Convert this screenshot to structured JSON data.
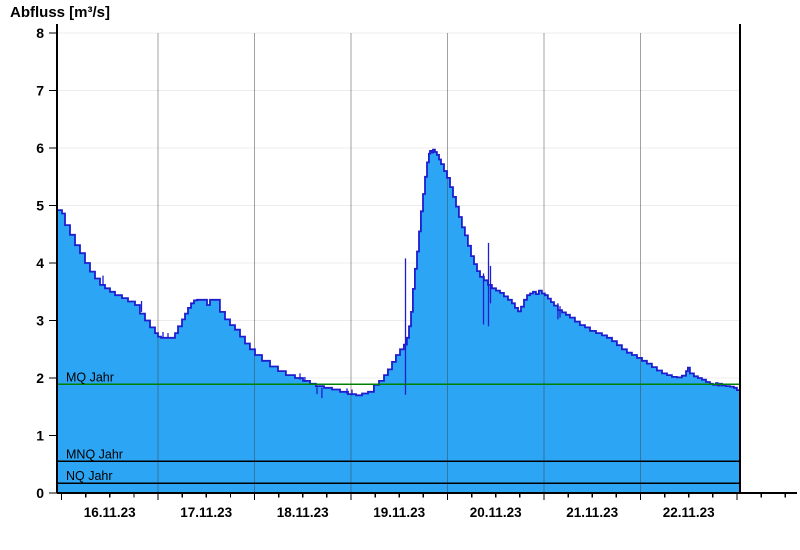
{
  "title": "Abfluss [m³/s]",
  "colors": {
    "area_fill": "#2ca5f4",
    "curve_line": "#1e1ecf",
    "mq_line": "#008000",
    "mnq_line": "#000000",
    "nq_line": "#000000",
    "h_grid": "#ececec",
    "v_grid_rgba": "rgba(68,68,68,0.5)",
    "axis": "#000000"
  },
  "chart_data": {
    "type": "area",
    "title": "Abfluss [m³/s]",
    "ylabel": "Abfluss [m³/s]",
    "xlabel": "",
    "ylim": [
      0,
      8
    ],
    "y_ticks": [
      0,
      1,
      2,
      3,
      4,
      5,
      6,
      7,
      8
    ],
    "x_day_labels": [
      "16.11.23",
      "17.11.23",
      "18.11.23",
      "19.11.23",
      "20.11.23",
      "21.11.23",
      "22.11.23"
    ],
    "x_range_days": [
      -0.047,
      7.031
    ],
    "minor_tick_hours": 6,
    "grid": {
      "horizontal_on_integer": true,
      "vertical_on_day_boundary": true
    },
    "legend": "none",
    "reference_lines": [
      {
        "id": "mq",
        "label": "MQ Jahr",
        "value": 1.89,
        "color": "#008000"
      },
      {
        "id": "mnq",
        "label": "MNQ Jahr",
        "value": 0.55,
        "color": "#000000"
      },
      {
        "id": "nq",
        "label": "NQ Jahr",
        "value": 0.17,
        "color": "#000000"
      }
    ],
    "series": [
      {
        "name": "Abfluss",
        "render": "step-area",
        "unit": "m³/s",
        "points": [
          [
            -0.047,
            4.92
          ],
          [
            0.005,
            4.86
          ],
          [
            0.036,
            4.66
          ],
          [
            0.088,
            4.49
          ],
          [
            0.14,
            4.31
          ],
          [
            0.192,
            4.17
          ],
          [
            0.244,
            4.0
          ],
          [
            0.295,
            3.85
          ],
          [
            0.347,
            3.73
          ],
          [
            0.399,
            3.62
          ],
          [
            0.451,
            3.56
          ],
          [
            0.503,
            3.5
          ],
          [
            0.554,
            3.44
          ],
          [
            0.627,
            3.39
          ],
          [
            0.689,
            3.33
          ],
          [
            0.762,
            3.27
          ],
          [
            0.813,
            3.12
          ],
          [
            0.865,
            3.0
          ],
          [
            0.917,
            2.88
          ],
          [
            0.969,
            2.78
          ],
          [
            1.0,
            2.72
          ],
          [
            1.031,
            2.7
          ],
          [
            1.145,
            2.7
          ],
          [
            1.176,
            2.78
          ],
          [
            1.207,
            2.9
          ],
          [
            1.249,
            3.02
          ],
          [
            1.28,
            3.12
          ],
          [
            1.311,
            3.22
          ],
          [
            1.342,
            3.3
          ],
          [
            1.373,
            3.35
          ],
          [
            1.404,
            3.36
          ],
          [
            1.497,
            3.36
          ],
          [
            1.508,
            3.27
          ],
          [
            1.539,
            3.36
          ],
          [
            1.601,
            3.36
          ],
          [
            1.642,
            3.15
          ],
          [
            1.694,
            3.02
          ],
          [
            1.746,
            2.92
          ],
          [
            1.798,
            2.84
          ],
          [
            1.85,
            2.72
          ],
          [
            1.902,
            2.6
          ],
          [
            1.953,
            2.5
          ],
          [
            2.005,
            2.4
          ],
          [
            2.078,
            2.3
          ],
          [
            2.161,
            2.2
          ],
          [
            2.244,
            2.12
          ],
          [
            2.326,
            2.05
          ],
          [
            2.42,
            2.0
          ],
          [
            2.503,
            1.95
          ],
          [
            2.575,
            1.9
          ],
          [
            2.637,
            1.86
          ],
          [
            2.72,
            1.83
          ],
          [
            2.803,
            1.8
          ],
          [
            2.886,
            1.76
          ],
          [
            2.969,
            1.72
          ],
          [
            3.052,
            1.7
          ],
          [
            3.114,
            1.73
          ],
          [
            3.176,
            1.76
          ],
          [
            3.238,
            1.88
          ],
          [
            3.29,
            1.95
          ],
          [
            3.342,
            2.05
          ],
          [
            3.383,
            2.15
          ],
          [
            3.425,
            2.28
          ],
          [
            3.466,
            2.4
          ],
          [
            3.508,
            2.5
          ],
          [
            3.549,
            2.58
          ],
          [
            3.58,
            2.7
          ],
          [
            3.601,
            2.9
          ],
          [
            3.622,
            3.15
          ],
          [
            3.642,
            3.55
          ],
          [
            3.663,
            3.9
          ],
          [
            3.684,
            4.2
          ],
          [
            3.705,
            4.55
          ],
          [
            3.725,
            4.9
          ],
          [
            3.746,
            5.2
          ],
          [
            3.767,
            5.5
          ],
          [
            3.788,
            5.75
          ],
          [
            3.808,
            5.9
          ],
          [
            3.819,
            5.95
          ],
          [
            3.839,
            5.92
          ],
          [
            3.85,
            5.97
          ],
          [
            3.87,
            5.93
          ],
          [
            3.891,
            5.88
          ],
          [
            3.912,
            5.8
          ],
          [
            3.933,
            5.72
          ],
          [
            3.964,
            5.6
          ],
          [
            3.995,
            5.48
          ],
          [
            4.026,
            5.32
          ],
          [
            4.057,
            5.15
          ],
          [
            4.088,
            4.98
          ],
          [
            4.119,
            4.8
          ],
          [
            4.15,
            4.62
          ],
          [
            4.181,
            4.48
          ],
          [
            4.212,
            4.3
          ],
          [
            4.244,
            4.12
          ],
          [
            4.275,
            3.98
          ],
          [
            4.306,
            3.86
          ],
          [
            4.337,
            3.76
          ],
          [
            4.378,
            3.7
          ],
          [
            4.42,
            3.62
          ],
          [
            4.461,
            3.56
          ],
          [
            4.503,
            3.52
          ],
          [
            4.544,
            3.48
          ],
          [
            4.585,
            3.42
          ],
          [
            4.627,
            3.36
          ],
          [
            4.668,
            3.3
          ],
          [
            4.699,
            3.22
          ],
          [
            4.731,
            3.16
          ],
          [
            4.762,
            3.24
          ],
          [
            4.793,
            3.36
          ],
          [
            4.824,
            3.44
          ],
          [
            4.855,
            3.47
          ],
          [
            4.886,
            3.5
          ],
          [
            4.917,
            3.46
          ],
          [
            4.948,
            3.52
          ],
          [
            4.979,
            3.47
          ],
          [
            5.01,
            3.44
          ],
          [
            5.041,
            3.38
          ],
          [
            5.072,
            3.32
          ],
          [
            5.104,
            3.26
          ],
          [
            5.145,
            3.18
          ],
          [
            5.187,
            3.14
          ],
          [
            5.228,
            3.1
          ],
          [
            5.269,
            3.05
          ],
          [
            5.321,
            2.98
          ],
          [
            5.373,
            2.92
          ],
          [
            5.425,
            2.88
          ],
          [
            5.477,
            2.82
          ],
          [
            5.539,
            2.78
          ],
          [
            5.601,
            2.74
          ],
          [
            5.653,
            2.7
          ],
          [
            5.705,
            2.64
          ],
          [
            5.756,
            2.57
          ],
          [
            5.808,
            2.5
          ],
          [
            5.86,
            2.44
          ],
          [
            5.912,
            2.4
          ],
          [
            5.964,
            2.35
          ],
          [
            6.016,
            2.3
          ],
          [
            6.067,
            2.25
          ],
          [
            6.119,
            2.19
          ],
          [
            6.171,
            2.13
          ],
          [
            6.223,
            2.08
          ],
          [
            6.275,
            2.05
          ],
          [
            6.326,
            2.02
          ],
          [
            6.378,
            2.01
          ],
          [
            6.43,
            2.04
          ],
          [
            6.472,
            2.12
          ],
          [
            6.492,
            2.18
          ],
          [
            6.513,
            2.08
          ],
          [
            6.554,
            2.03
          ],
          [
            6.596,
            2.0
          ],
          [
            6.637,
            1.97
          ],
          [
            6.679,
            1.93
          ],
          [
            6.72,
            1.9
          ],
          [
            6.751,
            1.88
          ],
          [
            6.782,
            1.91
          ],
          [
            6.803,
            1.87
          ],
          [
            6.824,
            1.9
          ],
          [
            6.845,
            1.87
          ],
          [
            6.886,
            1.86
          ],
          [
            6.927,
            1.85
          ],
          [
            6.969,
            1.83
          ],
          [
            7.0,
            1.79
          ],
          [
            7.031,
            1.78
          ]
        ]
      }
    ],
    "spikes": [
      [
        0.43,
        3.6,
        3.78
      ],
      [
        0.829,
        3.15,
        3.34
      ],
      [
        1.052,
        2.7,
        2.8
      ],
      [
        1.104,
        2.7,
        2.78
      ],
      [
        2.472,
        1.97,
        2.08
      ],
      [
        2.523,
        1.93,
        2.02
      ],
      [
        2.648,
        1.72,
        1.84
      ],
      [
        2.699,
        1.65,
        1.83
      ],
      [
        2.959,
        1.72,
        1.82
      ],
      [
        3.011,
        1.7,
        1.8
      ],
      [
        3.565,
        1.71,
        4.08
      ],
      [
        4.373,
        2.93,
        3.82
      ],
      [
        4.425,
        2.9,
        4.35
      ],
      [
        4.446,
        3.3,
        3.95
      ],
      [
        5.145,
        3.02,
        3.3
      ],
      [
        5.166,
        3.05,
        3.25
      ]
    ]
  }
}
